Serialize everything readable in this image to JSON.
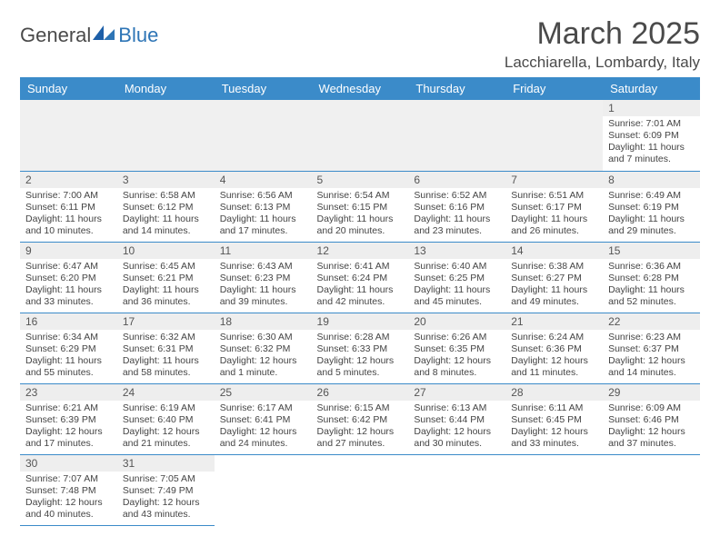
{
  "brand": {
    "part1": "General",
    "part2": "Blue"
  },
  "header": {
    "title": "March 2025",
    "location": "Lacchiarella, Lombardy, Italy"
  },
  "weekdays": [
    "Sunday",
    "Monday",
    "Tuesday",
    "Wednesday",
    "Thursday",
    "Friday",
    "Saturday"
  ],
  "colors": {
    "header_bg": "#3b8bc9",
    "header_text": "#ffffff",
    "daynum_bg": "#eeeeee",
    "rule": "#3b8bc9",
    "text": "#444444"
  },
  "typography": {
    "title_fontsize": 34,
    "location_fontsize": 17,
    "weekday_fontsize": 13,
    "daynum_fontsize": 12,
    "body_fontsize": 10.5
  },
  "layout": {
    "columns": 7,
    "rows": 6,
    "first_weekday_index": 6
  },
  "days": [
    {
      "n": 1,
      "sunrise": "7:01 AM",
      "sunset": "6:09 PM",
      "daylight": "11 hours and 7 minutes."
    },
    {
      "n": 2,
      "sunrise": "7:00 AM",
      "sunset": "6:11 PM",
      "daylight": "11 hours and 10 minutes."
    },
    {
      "n": 3,
      "sunrise": "6:58 AM",
      "sunset": "6:12 PM",
      "daylight": "11 hours and 14 minutes."
    },
    {
      "n": 4,
      "sunrise": "6:56 AM",
      "sunset": "6:13 PM",
      "daylight": "11 hours and 17 minutes."
    },
    {
      "n": 5,
      "sunrise": "6:54 AM",
      "sunset": "6:15 PM",
      "daylight": "11 hours and 20 minutes."
    },
    {
      "n": 6,
      "sunrise": "6:52 AM",
      "sunset": "6:16 PM",
      "daylight": "11 hours and 23 minutes."
    },
    {
      "n": 7,
      "sunrise": "6:51 AM",
      "sunset": "6:17 PM",
      "daylight": "11 hours and 26 minutes."
    },
    {
      "n": 8,
      "sunrise": "6:49 AM",
      "sunset": "6:19 PM",
      "daylight": "11 hours and 29 minutes."
    },
    {
      "n": 9,
      "sunrise": "6:47 AM",
      "sunset": "6:20 PM",
      "daylight": "11 hours and 33 minutes."
    },
    {
      "n": 10,
      "sunrise": "6:45 AM",
      "sunset": "6:21 PM",
      "daylight": "11 hours and 36 minutes."
    },
    {
      "n": 11,
      "sunrise": "6:43 AM",
      "sunset": "6:23 PM",
      "daylight": "11 hours and 39 minutes."
    },
    {
      "n": 12,
      "sunrise": "6:41 AM",
      "sunset": "6:24 PM",
      "daylight": "11 hours and 42 minutes."
    },
    {
      "n": 13,
      "sunrise": "6:40 AM",
      "sunset": "6:25 PM",
      "daylight": "11 hours and 45 minutes."
    },
    {
      "n": 14,
      "sunrise": "6:38 AM",
      "sunset": "6:27 PM",
      "daylight": "11 hours and 49 minutes."
    },
    {
      "n": 15,
      "sunrise": "6:36 AM",
      "sunset": "6:28 PM",
      "daylight": "11 hours and 52 minutes."
    },
    {
      "n": 16,
      "sunrise": "6:34 AM",
      "sunset": "6:29 PM",
      "daylight": "11 hours and 55 minutes."
    },
    {
      "n": 17,
      "sunrise": "6:32 AM",
      "sunset": "6:31 PM",
      "daylight": "11 hours and 58 minutes."
    },
    {
      "n": 18,
      "sunrise": "6:30 AM",
      "sunset": "6:32 PM",
      "daylight": "12 hours and 1 minute."
    },
    {
      "n": 19,
      "sunrise": "6:28 AM",
      "sunset": "6:33 PM",
      "daylight": "12 hours and 5 minutes."
    },
    {
      "n": 20,
      "sunrise": "6:26 AM",
      "sunset": "6:35 PM",
      "daylight": "12 hours and 8 minutes."
    },
    {
      "n": 21,
      "sunrise": "6:24 AM",
      "sunset": "6:36 PM",
      "daylight": "12 hours and 11 minutes."
    },
    {
      "n": 22,
      "sunrise": "6:23 AM",
      "sunset": "6:37 PM",
      "daylight": "12 hours and 14 minutes."
    },
    {
      "n": 23,
      "sunrise": "6:21 AM",
      "sunset": "6:39 PM",
      "daylight": "12 hours and 17 minutes."
    },
    {
      "n": 24,
      "sunrise": "6:19 AM",
      "sunset": "6:40 PM",
      "daylight": "12 hours and 21 minutes."
    },
    {
      "n": 25,
      "sunrise": "6:17 AM",
      "sunset": "6:41 PM",
      "daylight": "12 hours and 24 minutes."
    },
    {
      "n": 26,
      "sunrise": "6:15 AM",
      "sunset": "6:42 PM",
      "daylight": "12 hours and 27 minutes."
    },
    {
      "n": 27,
      "sunrise": "6:13 AM",
      "sunset": "6:44 PM",
      "daylight": "12 hours and 30 minutes."
    },
    {
      "n": 28,
      "sunrise": "6:11 AM",
      "sunset": "6:45 PM",
      "daylight": "12 hours and 33 minutes."
    },
    {
      "n": 29,
      "sunrise": "6:09 AM",
      "sunset": "6:46 PM",
      "daylight": "12 hours and 37 minutes."
    },
    {
      "n": 30,
      "sunrise": "7:07 AM",
      "sunset": "7:48 PM",
      "daylight": "12 hours and 40 minutes."
    },
    {
      "n": 31,
      "sunrise": "7:05 AM",
      "sunset": "7:49 PM",
      "daylight": "12 hours and 43 minutes."
    }
  ],
  "labels": {
    "sunrise": "Sunrise:",
    "sunset": "Sunset:",
    "daylight": "Daylight:"
  }
}
